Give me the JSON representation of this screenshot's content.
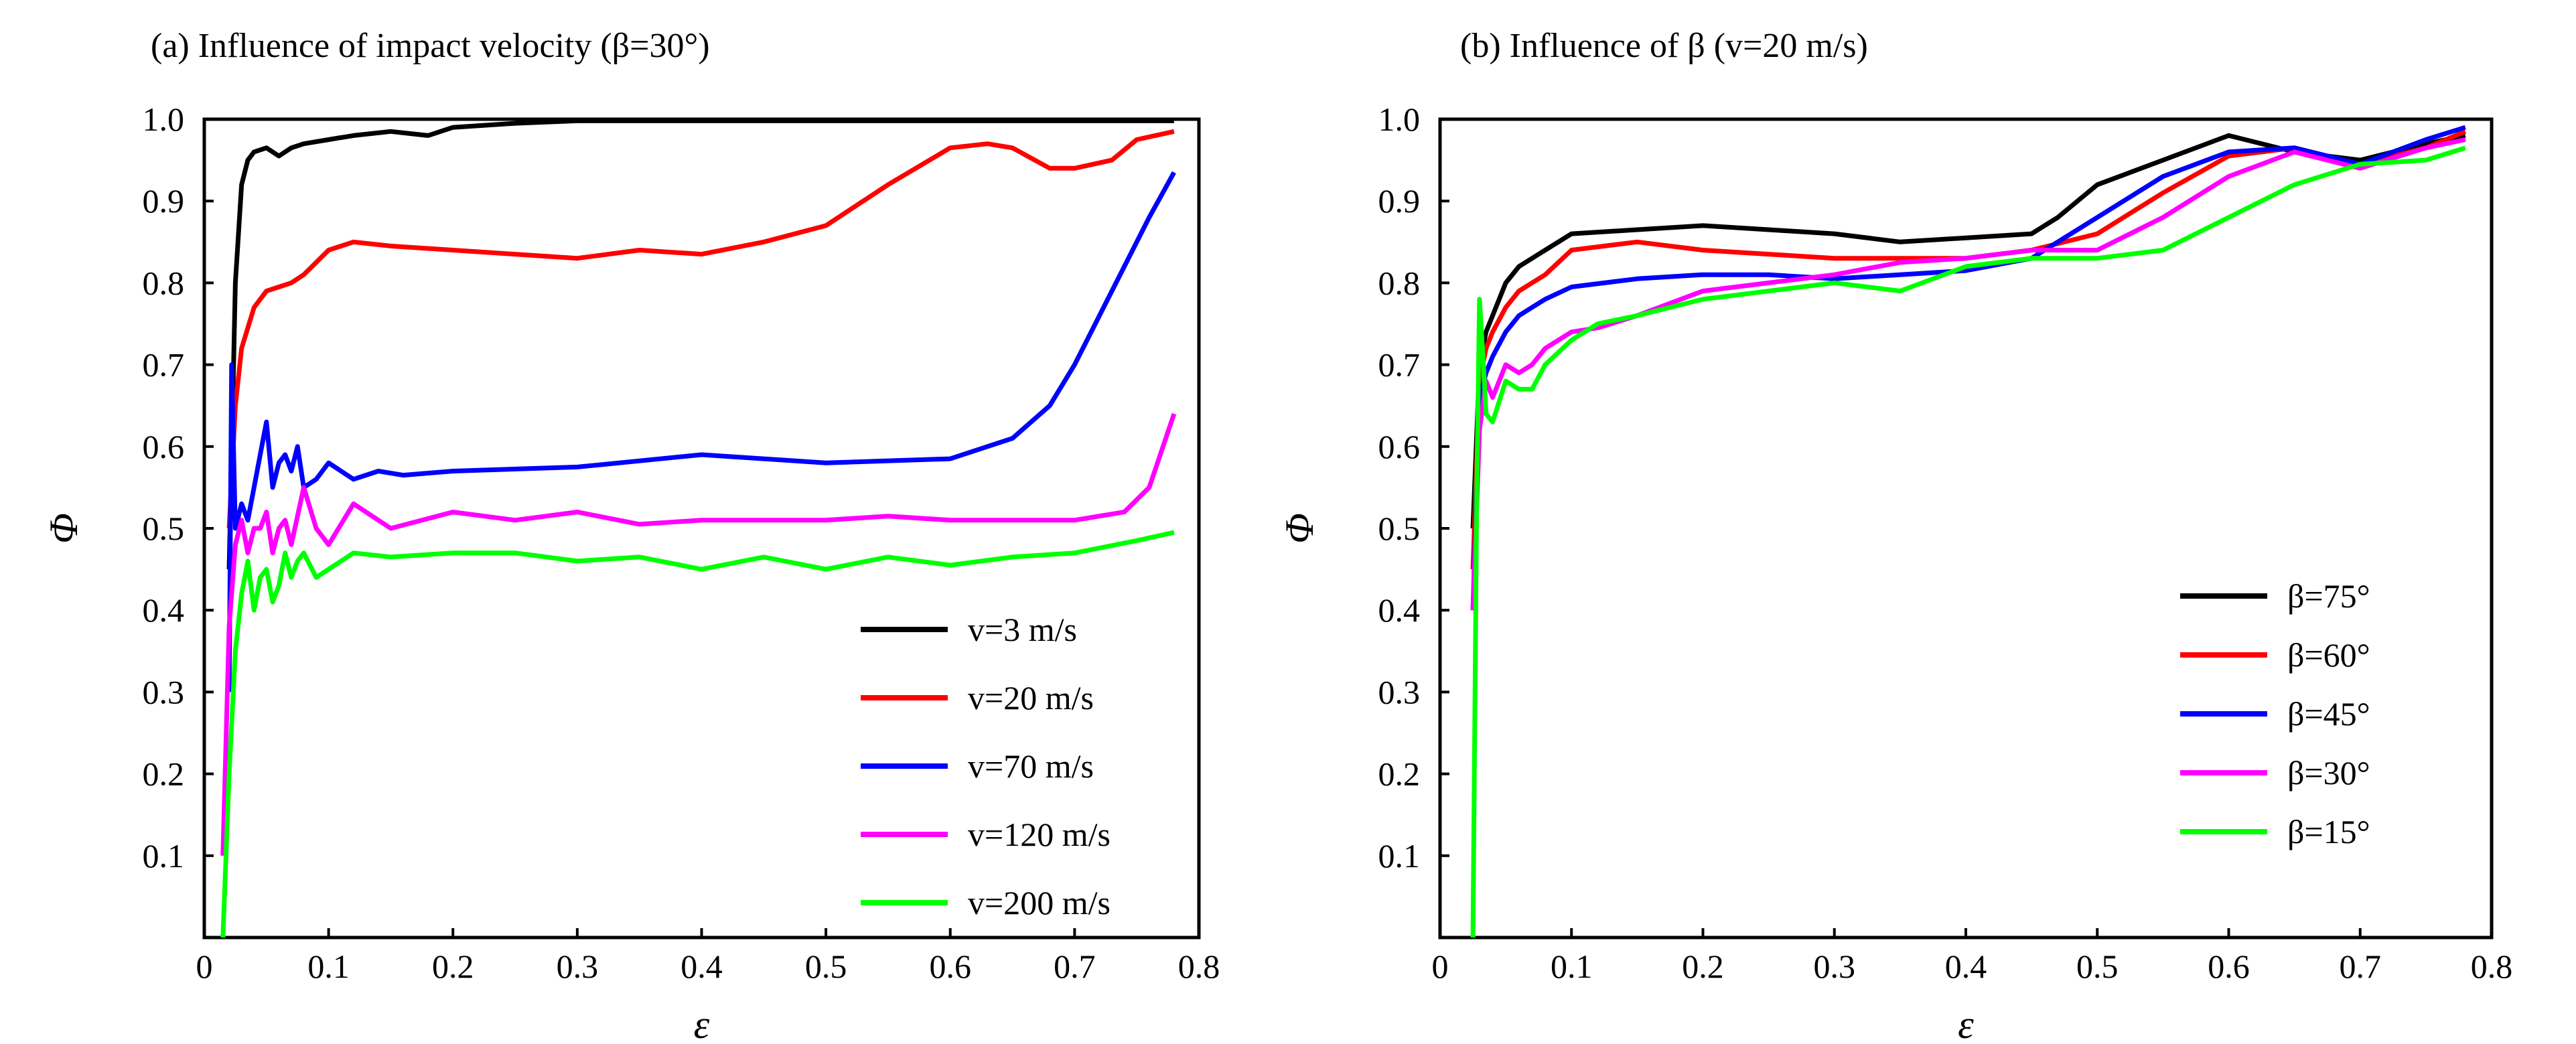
{
  "chart_data": [
    {
      "type": "line",
      "title": "(a) Influence of impact velocity (β=30°)",
      "xlabel": "ε",
      "ylabel": "Φ",
      "xlim": [
        0,
        0.8
      ],
      "ylim": [
        0,
        1.0
      ],
      "xticks": [
        "0",
        "0.1",
        "0.2",
        "0.3",
        "0.4",
        "0.5",
        "0.6",
        "0.7",
        "0.8"
      ],
      "yticks": [
        "0.1",
        "0.2",
        "0.3",
        "0.4",
        "0.5",
        "0.6",
        "0.7",
        "0.8",
        "0.9",
        "1.0"
      ],
      "grid": false,
      "legend": "bottom-right",
      "series": [
        {
          "name": "v=3 m/s",
          "color": "#000000",
          "x": [
            0.02,
            0.025,
            0.03,
            0.035,
            0.04,
            0.05,
            0.06,
            0.07,
            0.08,
            0.1,
            0.12,
            0.15,
            0.18,
            0.2,
            0.25,
            0.3,
            0.35,
            0.4,
            0.5,
            0.6,
            0.7,
            0.78
          ],
          "y": [
            0.45,
            0.8,
            0.92,
            0.95,
            0.96,
            0.965,
            0.955,
            0.965,
            0.97,
            0.975,
            0.98,
            0.985,
            0.98,
            0.99,
            0.995,
            0.998,
            0.998,
            0.998,
            0.998,
            0.998,
            0.998,
            0.998
          ]
        },
        {
          "name": "v=20 m/s",
          "color": "#ff0000",
          "x": [
            0.02,
            0.025,
            0.03,
            0.04,
            0.05,
            0.06,
            0.07,
            0.08,
            0.1,
            0.12,
            0.15,
            0.2,
            0.25,
            0.3,
            0.35,
            0.4,
            0.45,
            0.5,
            0.55,
            0.6,
            0.63,
            0.65,
            0.68,
            0.7,
            0.73,
            0.75,
            0.78
          ],
          "y": [
            0.5,
            0.65,
            0.72,
            0.77,
            0.79,
            0.795,
            0.8,
            0.81,
            0.84,
            0.85,
            0.845,
            0.84,
            0.835,
            0.83,
            0.84,
            0.835,
            0.85,
            0.87,
            0.92,
            0.965,
            0.97,
            0.965,
            0.94,
            0.94,
            0.95,
            0.975,
            0.985
          ]
        },
        {
          "name": "v=70 m/s",
          "color": "#0000ff",
          "x": [
            0.02,
            0.022,
            0.025,
            0.03,
            0.035,
            0.04,
            0.045,
            0.05,
            0.055,
            0.06,
            0.065,
            0.07,
            0.075,
            0.08,
            0.09,
            0.1,
            0.11,
            0.12,
            0.14,
            0.16,
            0.2,
            0.3,
            0.4,
            0.5,
            0.6,
            0.65,
            0.68,
            0.7,
            0.72,
            0.74,
            0.76,
            0.78
          ],
          "y": [
            0.3,
            0.7,
            0.5,
            0.53,
            0.51,
            0.55,
            0.59,
            0.63,
            0.55,
            0.58,
            0.59,
            0.57,
            0.6,
            0.55,
            0.56,
            0.58,
            0.57,
            0.56,
            0.57,
            0.565,
            0.57,
            0.575,
            0.59,
            0.58,
            0.585,
            0.61,
            0.65,
            0.7,
            0.76,
            0.82,
            0.88,
            0.935
          ]
        },
        {
          "name": "v=120 m/s",
          "color": "#ff00ff",
          "x": [
            0.015,
            0.02,
            0.025,
            0.03,
            0.035,
            0.04,
            0.045,
            0.05,
            0.055,
            0.06,
            0.065,
            0.07,
            0.08,
            0.09,
            0.1,
            0.12,
            0.15,
            0.2,
            0.25,
            0.3,
            0.35,
            0.4,
            0.45,
            0.5,
            0.55,
            0.6,
            0.65,
            0.7,
            0.74,
            0.76,
            0.78
          ],
          "y": [
            0.1,
            0.38,
            0.48,
            0.51,
            0.47,
            0.5,
            0.5,
            0.52,
            0.47,
            0.5,
            0.51,
            0.48,
            0.55,
            0.5,
            0.48,
            0.53,
            0.5,
            0.52,
            0.51,
            0.52,
            0.505,
            0.51,
            0.51,
            0.51,
            0.515,
            0.51,
            0.51,
            0.51,
            0.52,
            0.55,
            0.64
          ]
        },
        {
          "name": "v=200 m/s",
          "color": "#00ff00",
          "x": [
            0.015,
            0.02,
            0.025,
            0.03,
            0.035,
            0.04,
            0.045,
            0.05,
            0.055,
            0.06,
            0.065,
            0.07,
            0.075,
            0.08,
            0.09,
            0.1,
            0.12,
            0.15,
            0.2,
            0.25,
            0.3,
            0.35,
            0.4,
            0.45,
            0.5,
            0.55,
            0.6,
            0.65,
            0.7,
            0.75,
            0.78
          ],
          "y": [
            0.0,
            0.2,
            0.35,
            0.42,
            0.46,
            0.4,
            0.44,
            0.45,
            0.41,
            0.43,
            0.47,
            0.44,
            0.46,
            0.47,
            0.44,
            0.45,
            0.47,
            0.465,
            0.47,
            0.47,
            0.46,
            0.465,
            0.45,
            0.465,
            0.45,
            0.465,
            0.455,
            0.465,
            0.47,
            0.485,
            0.495
          ]
        }
      ]
    },
    {
      "type": "line",
      "title": "(b) Influence of β (v=20 m/s)",
      "xlabel": "ε",
      "ylabel": "Φ",
      "xlim": [
        0,
        0.8
      ],
      "ylim": [
        0,
        1.0
      ],
      "xticks": [
        "0",
        "0.1",
        "0.2",
        "0.3",
        "0.4",
        "0.5",
        "0.6",
        "0.7",
        "0.8"
      ],
      "yticks": [
        "0.1",
        "0.2",
        "0.3",
        "0.4",
        "0.5",
        "0.6",
        "0.7",
        "0.8",
        "0.9",
        "1.0"
      ],
      "grid": false,
      "legend": "bottom-right",
      "series": [
        {
          "name": "β=75°",
          "color": "#000000",
          "x": [
            0.025,
            0.03,
            0.035,
            0.04,
            0.05,
            0.06,
            0.08,
            0.1,
            0.15,
            0.2,
            0.25,
            0.3,
            0.35,
            0.4,
            0.45,
            0.47,
            0.5,
            0.55,
            0.6,
            0.65,
            0.7,
            0.75,
            0.78
          ],
          "y": [
            0.5,
            0.7,
            0.74,
            0.76,
            0.8,
            0.82,
            0.84,
            0.86,
            0.865,
            0.87,
            0.865,
            0.86,
            0.85,
            0.855,
            0.86,
            0.88,
            0.92,
            0.95,
            0.98,
            0.96,
            0.95,
            0.97,
            0.98
          ]
        },
        {
          "name": "β=60°",
          "color": "#ff0000",
          "x": [
            0.025,
            0.03,
            0.035,
            0.04,
            0.05,
            0.06,
            0.08,
            0.1,
            0.15,
            0.2,
            0.25,
            0.3,
            0.35,
            0.4,
            0.45,
            0.5,
            0.55,
            0.6,
            0.65,
            0.7,
            0.75,
            0.78
          ],
          "y": [
            0.45,
            0.68,
            0.72,
            0.74,
            0.77,
            0.79,
            0.81,
            0.84,
            0.85,
            0.84,
            0.835,
            0.83,
            0.83,
            0.83,
            0.84,
            0.86,
            0.91,
            0.955,
            0.965,
            0.945,
            0.965,
            0.985
          ]
        },
        {
          "name": "β=45°",
          "color": "#0000ff",
          "x": [
            0.025,
            0.03,
            0.035,
            0.04,
            0.05,
            0.06,
            0.08,
            0.1,
            0.15,
            0.2,
            0.25,
            0.3,
            0.35,
            0.4,
            0.45,
            0.5,
            0.55,
            0.6,
            0.65,
            0.7,
            0.75,
            0.78
          ],
          "y": [
            0.4,
            0.66,
            0.69,
            0.71,
            0.74,
            0.76,
            0.78,
            0.795,
            0.805,
            0.81,
            0.81,
            0.805,
            0.81,
            0.815,
            0.83,
            0.88,
            0.93,
            0.96,
            0.965,
            0.945,
            0.975,
            0.99
          ]
        },
        {
          "name": "β=30°",
          "color": "#ff00ff",
          "x": [
            0.025,
            0.03,
            0.035,
            0.04,
            0.05,
            0.06,
            0.07,
            0.08,
            0.1,
            0.12,
            0.15,
            0.2,
            0.25,
            0.3,
            0.35,
            0.4,
            0.45,
            0.5,
            0.55,
            0.6,
            0.65,
            0.7,
            0.75,
            0.78
          ],
          "y": [
            0.4,
            0.62,
            0.68,
            0.66,
            0.7,
            0.69,
            0.7,
            0.72,
            0.74,
            0.745,
            0.76,
            0.79,
            0.8,
            0.81,
            0.825,
            0.83,
            0.84,
            0.84,
            0.88,
            0.93,
            0.96,
            0.94,
            0.965,
            0.975
          ]
        },
        {
          "name": "β=15°",
          "color": "#00ff00",
          "x": [
            0.025,
            0.028,
            0.03,
            0.033,
            0.035,
            0.04,
            0.05,
            0.06,
            0.07,
            0.08,
            0.1,
            0.12,
            0.15,
            0.2,
            0.25,
            0.3,
            0.35,
            0.4,
            0.45,
            0.5,
            0.55,
            0.6,
            0.65,
            0.7,
            0.75,
            0.78
          ],
          "y": [
            0.0,
            0.55,
            0.78,
            0.7,
            0.64,
            0.63,
            0.68,
            0.67,
            0.67,
            0.7,
            0.73,
            0.75,
            0.76,
            0.78,
            0.79,
            0.8,
            0.79,
            0.82,
            0.83,
            0.83,
            0.84,
            0.88,
            0.92,
            0.945,
            0.95,
            0.965
          ]
        }
      ]
    }
  ]
}
